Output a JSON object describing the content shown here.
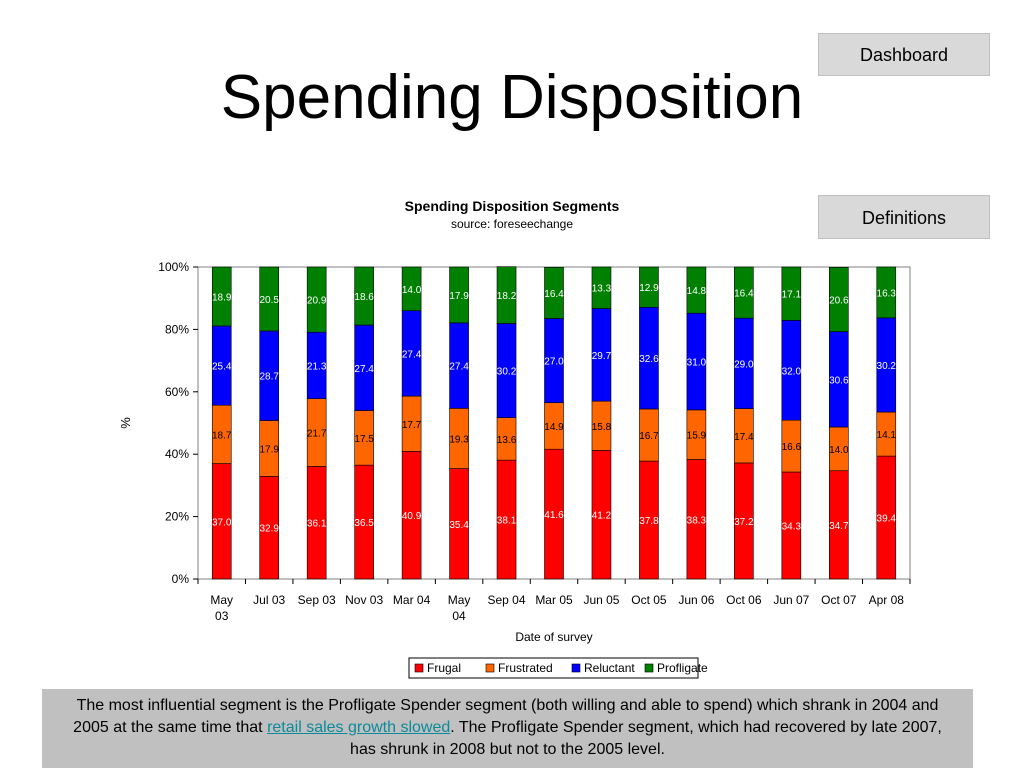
{
  "page": {
    "title": "Spending Disposition",
    "buttons": {
      "dashboard": "Dashboard",
      "definitions": "Definitions"
    }
  },
  "note": {
    "text_1": "The most influential segment is the Profligate Spender segment (both willing and able to spend) which shrank in 2004 and 2005 at the same time that ",
    "link": "retail sales growth slowed",
    "text_2": ".  The Profligate Spender segment, which had recovered by late 2007, has shrunk in 2008 but not to the 2005 level."
  },
  "chart_data": {
    "type": "bar",
    "stacked": true,
    "title": "Spending Disposition Segments",
    "subtitle": "source: foreseechange",
    "xlabel": "Date of survey",
    "ylabel": "%",
    "ylim": [
      0,
      100
    ],
    "yticks": [
      "0%",
      "20%",
      "40%",
      "60%",
      "80%",
      "100%"
    ],
    "legend_position": "bottom",
    "grid": false,
    "categories": [
      "May 03",
      "Jul 03",
      "Sep 03",
      "Nov 03",
      "Mar 04",
      "May 04",
      "Sep 04",
      "Mar 05",
      "Jun 05",
      "Oct 05",
      "Jun 06",
      "Oct 06",
      "Jun 07",
      "Oct 07",
      "Apr 08"
    ],
    "series": [
      {
        "name": "Frugal",
        "color": "#ff0000",
        "label_color": "#ffffff",
        "values": [
          37.0,
          32.9,
          36.1,
          36.5,
          40.9,
          35.4,
          38.1,
          41.6,
          41.2,
          37.8,
          38.3,
          37.2,
          34.3,
          34.7,
          39.4
        ]
      },
      {
        "name": "Frustrated",
        "color": "#ff6600",
        "label_color": "#000000",
        "values": [
          18.7,
          17.9,
          21.7,
          17.5,
          17.7,
          19.3,
          13.6,
          14.9,
          15.8,
          16.7,
          15.9,
          17.4,
          16.6,
          14.0,
          14.1
        ]
      },
      {
        "name": "Reluctant",
        "color": "#0000ff",
        "label_color": "#ffffff",
        "values": [
          25.4,
          28.7,
          21.3,
          27.4,
          27.4,
          27.4,
          30.2,
          27.0,
          29.7,
          32.6,
          31.0,
          29.0,
          32.0,
          30.6,
          30.2
        ]
      },
      {
        "name": "Profligate",
        "color": "#008000",
        "label_color": "#ffffff",
        "values": [
          18.9,
          20.5,
          20.9,
          18.6,
          14.0,
          17.9,
          18.2,
          16.4,
          13.3,
          12.9,
          14.8,
          16.4,
          17.1,
          20.6,
          16.3
        ]
      }
    ]
  }
}
